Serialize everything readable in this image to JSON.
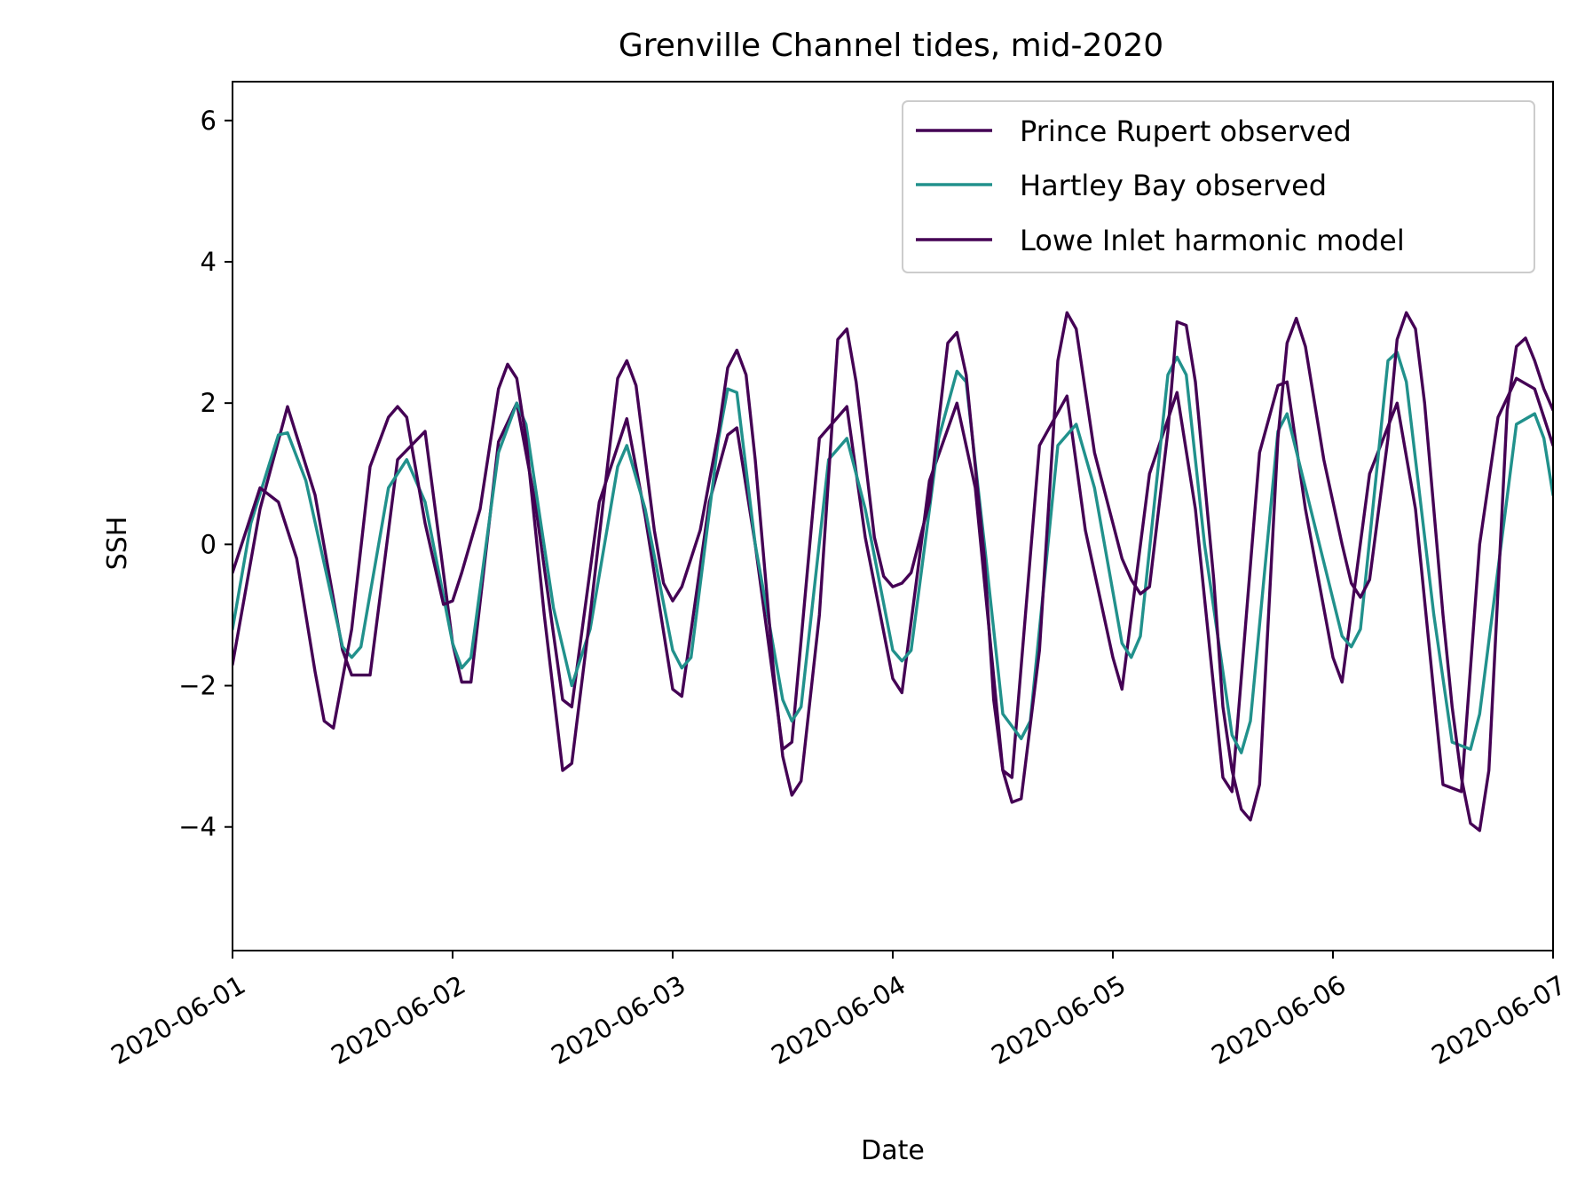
{
  "chart_data": {
    "type": "line",
    "title": "Grenville Channel tides, mid-2020",
    "xlabel": "Date",
    "ylabel": "SSH",
    "xlim": [
      "2020-06-01 00:00",
      "2020-06-07 00:00"
    ],
    "ylim": [
      -5.75,
      6.55
    ],
    "x_ticks": [
      "2020-06-01",
      "2020-06-02",
      "2020-06-03",
      "2020-06-04",
      "2020-06-05",
      "2020-06-06",
      "2020-06-07"
    ],
    "y_ticks": [
      {
        "value": 6,
        "label": "6"
      },
      {
        "value": 4,
        "label": "4"
      },
      {
        "value": 2,
        "label": "2"
      },
      {
        "value": 0,
        "label": "0"
      },
      {
        "value": -2,
        "label": "−2"
      },
      {
        "value": -4,
        "label": "−4"
      }
    ],
    "grid": false,
    "legend_position": "upper right",
    "series": [
      {
        "name": "Prince Rupert observed",
        "color": "#440154",
        "points": [
          [
            "2020-06-01 00:00",
            -1.7
          ],
          [
            "2020-06-01 03:00",
            0.5
          ],
          [
            "2020-06-01 06:00",
            1.95
          ],
          [
            "2020-06-01 09:00",
            0.7
          ],
          [
            "2020-06-01 12:00",
            -1.5
          ],
          [
            "2020-06-01 13:00",
            -1.85
          ],
          [
            "2020-06-01 15:00",
            -1.85
          ],
          [
            "2020-06-01 18:00",
            1.2
          ],
          [
            "2020-06-01 21:00",
            1.6
          ],
          [
            "2020-06-02 00:00",
            -1.4
          ],
          [
            "2020-06-02 01:00",
            -1.95
          ],
          [
            "2020-06-02 02:00",
            -1.95
          ],
          [
            "2020-06-02 05:00",
            1.45
          ],
          [
            "2020-06-02 07:00",
            2.0
          ],
          [
            "2020-06-02 09:00",
            0.6
          ],
          [
            "2020-06-02 12:00",
            -2.2
          ],
          [
            "2020-06-02 13:00",
            -2.3
          ],
          [
            "2020-06-02 16:00",
            0.6
          ],
          [
            "2020-06-02 19:00",
            1.78
          ],
          [
            "2020-06-02 21:00",
            0.4
          ],
          [
            "2020-06-03 00:00",
            -2.05
          ],
          [
            "2020-06-03 01:00",
            -2.15
          ],
          [
            "2020-06-03 04:00",
            0.6
          ],
          [
            "2020-06-03 06:00",
            1.55
          ],
          [
            "2020-06-03 07:00",
            1.65
          ],
          [
            "2020-06-03 09:00",
            0.0
          ],
          [
            "2020-06-03 12:00",
            -2.9
          ],
          [
            "2020-06-03 13:00",
            -2.8
          ],
          [
            "2020-06-03 16:00",
            1.5
          ],
          [
            "2020-06-03 19:00",
            1.95
          ],
          [
            "2020-06-03 21:00",
            0.1
          ],
          [
            "2020-06-04 00:00",
            -1.9
          ],
          [
            "2020-06-04 01:00",
            -2.1
          ],
          [
            "2020-06-04 04:00",
            0.9
          ],
          [
            "2020-06-04 07:00",
            2.0
          ],
          [
            "2020-06-04 09:00",
            0.8
          ],
          [
            "2020-06-04 12:00",
            -3.2
          ],
          [
            "2020-06-04 13:00",
            -3.3
          ],
          [
            "2020-06-04 16:00",
            1.4
          ],
          [
            "2020-06-04 19:00",
            2.1
          ],
          [
            "2020-06-04 21:00",
            0.2
          ],
          [
            "2020-06-05 00:00",
            -1.6
          ],
          [
            "2020-06-05 01:00",
            -2.05
          ],
          [
            "2020-06-05 04:00",
            1.0
          ],
          [
            "2020-06-05 07:00",
            2.15
          ],
          [
            "2020-06-05 09:00",
            0.5
          ],
          [
            "2020-06-05 12:00",
            -3.3
          ],
          [
            "2020-06-05 13:00",
            -3.5
          ],
          [
            "2020-06-05 16:00",
            1.3
          ],
          [
            "2020-06-05 18:00",
            2.25
          ],
          [
            "2020-06-05 19:00",
            2.3
          ],
          [
            "2020-06-05 21:00",
            0.5
          ],
          [
            "2020-06-06 00:00",
            -1.6
          ],
          [
            "2020-06-06 01:00",
            -1.95
          ],
          [
            "2020-06-06 04:00",
            1.0
          ],
          [
            "2020-06-06 07:00",
            2.0
          ],
          [
            "2020-06-06 09:00",
            0.5
          ],
          [
            "2020-06-06 12:00",
            -3.4
          ],
          [
            "2020-06-06 14:00",
            -3.5
          ],
          [
            "2020-06-06 16:00",
            0.0
          ],
          [
            "2020-06-06 18:00",
            1.8
          ],
          [
            "2020-06-06 20:00",
            2.35
          ],
          [
            "2020-06-06 22:00",
            2.2
          ],
          [
            "2020-06-07 00:00",
            1.4
          ]
        ]
      },
      {
        "name": "Hartley Bay observed",
        "color": "#21918c",
        "points": [
          [
            "2020-06-01 00:00",
            -1.2
          ],
          [
            "2020-06-01 02:00",
            0.3
          ],
          [
            "2020-06-01 05:00",
            1.55
          ],
          [
            "2020-06-01 06:00",
            1.58
          ],
          [
            "2020-06-01 08:00",
            0.9
          ],
          [
            "2020-06-01 12:00",
            -1.45
          ],
          [
            "2020-06-01 13:00",
            -1.6
          ],
          [
            "2020-06-01 14:00",
            -1.45
          ],
          [
            "2020-06-01 17:00",
            0.8
          ],
          [
            "2020-06-01 19:00",
            1.2
          ],
          [
            "2020-06-01 21:00",
            0.6
          ],
          [
            "2020-06-02 00:00",
            -1.4
          ],
          [
            "2020-06-02 01:00",
            -1.75
          ],
          [
            "2020-06-02 02:00",
            -1.6
          ],
          [
            "2020-06-02 05:00",
            1.3
          ],
          [
            "2020-06-02 07:00",
            2.0
          ],
          [
            "2020-06-02 08:00",
            1.7
          ],
          [
            "2020-06-02 11:00",
            -0.9
          ],
          [
            "2020-06-02 13:00",
            -2.0
          ],
          [
            "2020-06-02 15:00",
            -1.2
          ],
          [
            "2020-06-02 18:00",
            1.1
          ],
          [
            "2020-06-02 19:00",
            1.4
          ],
          [
            "2020-06-02 21:00",
            0.5
          ],
          [
            "2020-06-03 00:00",
            -1.5
          ],
          [
            "2020-06-03 01:00",
            -1.75
          ],
          [
            "2020-06-03 02:00",
            -1.6
          ],
          [
            "2020-06-03 05:00",
            1.5
          ],
          [
            "2020-06-03 06:00",
            2.2
          ],
          [
            "2020-06-03 07:00",
            2.15
          ],
          [
            "2020-06-03 09:00",
            0.0
          ],
          [
            "2020-06-03 12:00",
            -2.2
          ],
          [
            "2020-06-03 13:00",
            -2.5
          ],
          [
            "2020-06-03 14:00",
            -2.3
          ],
          [
            "2020-06-03 17:00",
            1.2
          ],
          [
            "2020-06-03 19:00",
            1.5
          ],
          [
            "2020-06-03 21:00",
            0.5
          ],
          [
            "2020-06-04 00:00",
            -1.5
          ],
          [
            "2020-06-04 01:00",
            -1.65
          ],
          [
            "2020-06-04 02:00",
            -1.5
          ],
          [
            "2020-06-04 05:00",
            1.5
          ],
          [
            "2020-06-04 07:00",
            2.45
          ],
          [
            "2020-06-04 08:00",
            2.3
          ],
          [
            "2020-06-04 10:00",
            0.0
          ],
          [
            "2020-06-04 12:00",
            -2.4
          ],
          [
            "2020-06-04 14:00",
            -2.75
          ],
          [
            "2020-06-04 15:00",
            -2.5
          ],
          [
            "2020-06-04 18:00",
            1.4
          ],
          [
            "2020-06-04 20:00",
            1.7
          ],
          [
            "2020-06-04 22:00",
            0.8
          ],
          [
            "2020-06-05 01:00",
            -1.4
          ],
          [
            "2020-06-05 02:00",
            -1.6
          ],
          [
            "2020-06-05 03:00",
            -1.3
          ],
          [
            "2020-06-05 06:00",
            2.4
          ],
          [
            "2020-06-05 07:00",
            2.65
          ],
          [
            "2020-06-05 08:00",
            2.4
          ],
          [
            "2020-06-05 10:00",
            0.0
          ],
          [
            "2020-06-05 13:00",
            -2.7
          ],
          [
            "2020-06-05 14:00",
            -2.95
          ],
          [
            "2020-06-05 15:00",
            -2.5
          ],
          [
            "2020-06-05 18:00",
            1.6
          ],
          [
            "2020-06-05 19:00",
            1.85
          ],
          [
            "2020-06-05 21:00",
            0.8
          ],
          [
            "2020-06-06 01:00",
            -1.3
          ],
          [
            "2020-06-06 02:00",
            -1.45
          ],
          [
            "2020-06-06 03:00",
            -1.2
          ],
          [
            "2020-06-06 06:00",
            2.6
          ],
          [
            "2020-06-06 07:00",
            2.72
          ],
          [
            "2020-06-06 08:00",
            2.3
          ],
          [
            "2020-06-06 11:00",
            -1.0
          ],
          [
            "2020-06-06 13:00",
            -2.8
          ],
          [
            "2020-06-06 15:00",
            -2.9
          ],
          [
            "2020-06-06 16:00",
            -2.4
          ],
          [
            "2020-06-06 20:00",
            1.7
          ],
          [
            "2020-06-06 22:00",
            1.85
          ],
          [
            "2020-06-06 23:00",
            1.5
          ],
          [
            "2020-06-07 00:00",
            0.7
          ]
        ]
      },
      {
        "name": "Lowe Inlet harmonic model",
        "color": "#440154",
        "points": [
          [
            "2020-06-01 00:00",
            -0.4
          ],
          [
            "2020-06-01 03:00",
            0.8
          ],
          [
            "2020-06-01 05:00",
            0.6
          ],
          [
            "2020-06-01 07:00",
            -0.2
          ],
          [
            "2020-06-01 09:00",
            -1.8
          ],
          [
            "2020-06-01 10:00",
            -2.5
          ],
          [
            "2020-06-01 11:00",
            -2.6
          ],
          [
            "2020-06-01 13:00",
            -1.2
          ],
          [
            "2020-06-01 15:00",
            1.1
          ],
          [
            "2020-06-01 17:00",
            1.8
          ],
          [
            "2020-06-01 18:00",
            1.95
          ],
          [
            "2020-06-01 19:00",
            1.8
          ],
          [
            "2020-06-01 21:00",
            0.3
          ],
          [
            "2020-06-01 23:00",
            -0.85
          ],
          [
            "2020-06-02 00:00",
            -0.8
          ],
          [
            "2020-06-02 01:00",
            -0.4
          ],
          [
            "2020-06-02 03:00",
            0.5
          ],
          [
            "2020-06-02 05:00",
            2.2
          ],
          [
            "2020-06-02 06:00",
            2.55
          ],
          [
            "2020-06-02 07:00",
            2.35
          ],
          [
            "2020-06-02 08:00",
            1.5
          ],
          [
            "2020-06-02 10:00",
            -1.0
          ],
          [
            "2020-06-02 12:00",
            -3.2
          ],
          [
            "2020-06-02 13:00",
            -3.1
          ],
          [
            "2020-06-02 15:00",
            -1.0
          ],
          [
            "2020-06-02 18:00",
            2.35
          ],
          [
            "2020-06-02 19:00",
            2.6
          ],
          [
            "2020-06-02 20:00",
            2.25
          ],
          [
            "2020-06-02 22:00",
            0.2
          ],
          [
            "2020-06-02 23:00",
            -0.55
          ],
          [
            "2020-06-03 00:00",
            -0.8
          ],
          [
            "2020-06-03 01:00",
            -0.6
          ],
          [
            "2020-06-03 03:00",
            0.2
          ],
          [
            "2020-06-03 05:00",
            1.6
          ],
          [
            "2020-06-03 06:00",
            2.5
          ],
          [
            "2020-06-03 07:00",
            2.75
          ],
          [
            "2020-06-03 08:00",
            2.4
          ],
          [
            "2020-06-03 09:00",
            1.2
          ],
          [
            "2020-06-03 11:00",
            -1.8
          ],
          [
            "2020-06-03 12:00",
            -3.0
          ],
          [
            "2020-06-03 13:00",
            -3.55
          ],
          [
            "2020-06-03 14:00",
            -3.35
          ],
          [
            "2020-06-03 16:00",
            -1.0
          ],
          [
            "2020-06-03 18:00",
            2.9
          ],
          [
            "2020-06-03 19:00",
            3.05
          ],
          [
            "2020-06-03 20:00",
            2.3
          ],
          [
            "2020-06-03 22:00",
            0.1
          ],
          [
            "2020-06-03 23:00",
            -0.45
          ],
          [
            "2020-06-04 00:00",
            -0.6
          ],
          [
            "2020-06-04 01:00",
            -0.55
          ],
          [
            "2020-06-04 02:00",
            -0.4
          ],
          [
            "2020-06-04 04:00",
            0.6
          ],
          [
            "2020-06-04 06:00",
            2.85
          ],
          [
            "2020-06-04 07:00",
            3.0
          ],
          [
            "2020-06-04 08:00",
            2.4
          ],
          [
            "2020-06-04 10:00",
            -0.2
          ],
          [
            "2020-06-04 11:00",
            -2.2
          ],
          [
            "2020-06-04 12:00",
            -3.2
          ],
          [
            "2020-06-04 13:00",
            -3.65
          ],
          [
            "2020-06-04 14:00",
            -3.6
          ],
          [
            "2020-06-04 16:00",
            -1.5
          ],
          [
            "2020-06-04 18:00",
            2.6
          ],
          [
            "2020-06-04 19:00",
            3.28
          ],
          [
            "2020-06-04 20:00",
            3.05
          ],
          [
            "2020-06-04 22:00",
            1.3
          ],
          [
            "2020-06-05 00:00",
            0.3
          ],
          [
            "2020-06-05 01:00",
            -0.2
          ],
          [
            "2020-06-05 02:00",
            -0.5
          ],
          [
            "2020-06-05 03:00",
            -0.7
          ],
          [
            "2020-06-05 04:00",
            -0.6
          ],
          [
            "2020-06-05 06:00",
            1.6
          ],
          [
            "2020-06-05 07:00",
            3.15
          ],
          [
            "2020-06-05 08:00",
            3.1
          ],
          [
            "2020-06-05 09:00",
            2.3
          ],
          [
            "2020-06-05 11:00",
            -0.5
          ],
          [
            "2020-06-05 12:00",
            -2.3
          ],
          [
            "2020-06-05 13:00",
            -3.2
          ],
          [
            "2020-06-05 14:00",
            -3.75
          ],
          [
            "2020-06-05 15:00",
            -3.9
          ],
          [
            "2020-06-05 16:00",
            -3.4
          ],
          [
            "2020-06-05 18:00",
            1.5
          ],
          [
            "2020-06-05 19:00",
            2.85
          ],
          [
            "2020-06-05 20:00",
            3.2
          ],
          [
            "2020-06-05 21:00",
            2.8
          ],
          [
            "2020-06-05 23:00",
            1.2
          ],
          [
            "2020-06-06 01:00",
            0.0
          ],
          [
            "2020-06-06 02:00",
            -0.55
          ],
          [
            "2020-06-06 03:00",
            -0.75
          ],
          [
            "2020-06-06 04:00",
            -0.5
          ],
          [
            "2020-06-06 06:00",
            1.5
          ],
          [
            "2020-06-06 07:00",
            2.9
          ],
          [
            "2020-06-06 08:00",
            3.28
          ],
          [
            "2020-06-06 09:00",
            3.05
          ],
          [
            "2020-06-06 10:00",
            2.0
          ],
          [
            "2020-06-06 12:00",
            -1.0
          ],
          [
            "2020-06-06 13:00",
            -2.3
          ],
          [
            "2020-06-06 14:00",
            -3.3
          ],
          [
            "2020-06-06 15:00",
            -3.95
          ],
          [
            "2020-06-06 16:00",
            -4.05
          ],
          [
            "2020-06-06 17:00",
            -3.2
          ],
          [
            "2020-06-06 19:00",
            1.9
          ],
          [
            "2020-06-06 20:00",
            2.8
          ],
          [
            "2020-06-06 21:00",
            2.92
          ],
          [
            "2020-06-06 22:00",
            2.6
          ],
          [
            "2020-06-06 23:00",
            2.2
          ],
          [
            "2020-06-07 00:00",
            1.9
          ]
        ]
      }
    ]
  }
}
